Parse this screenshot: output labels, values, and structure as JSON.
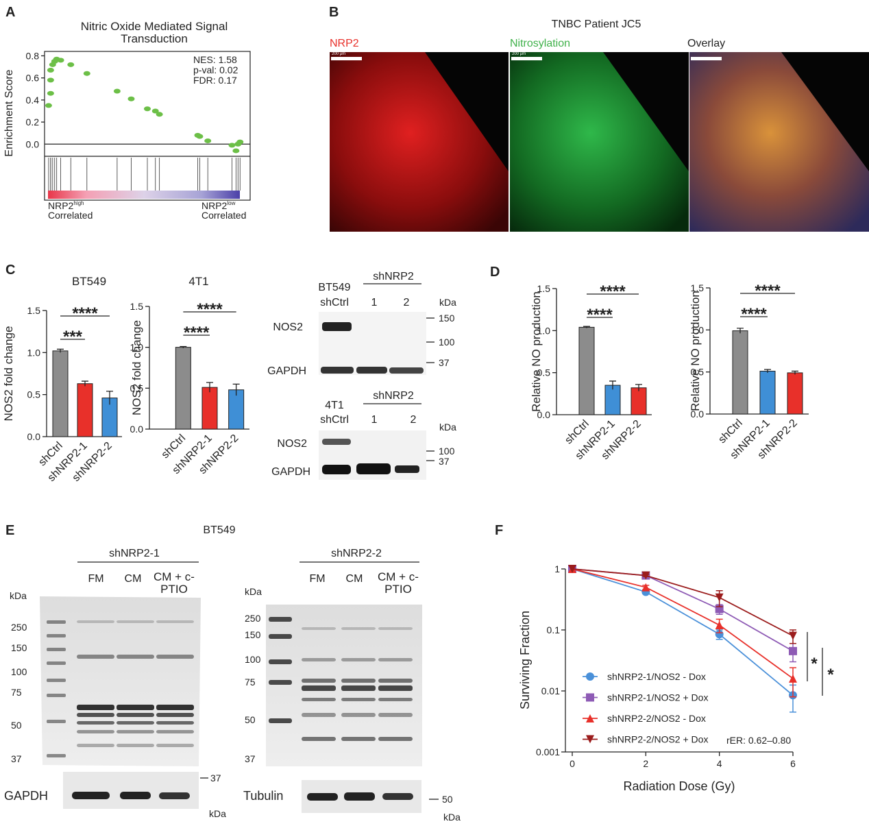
{
  "panel_labels": [
    "A",
    "B",
    "C",
    "D",
    "E",
    "F"
  ],
  "chart_data": [
    {
      "type": "scatter",
      "title": "Nitric Oxide Mediated Signal Transduction",
      "ylabel": "Enrichment Score",
      "color": "#6cbf47",
      "x": [
        1,
        2,
        2,
        2,
        3,
        4,
        5,
        7,
        12,
        20,
        35,
        42,
        50,
        54,
        56,
        75,
        76,
        80,
        92,
        94,
        95,
        96
      ],
      "values": [
        0.35,
        0.46,
        0.58,
        0.67,
        0.72,
        0.75,
        0.77,
        0.76,
        0.72,
        0.64,
        0.48,
        0.41,
        0.32,
        0.3,
        0.27,
        0.08,
        0.07,
        0.03,
        -0.01,
        -0.06,
        0,
        0.02
      ],
      "xlim": [
        0,
        100
      ],
      "ylim": [
        -0.11,
        0.84
      ],
      "yticks": [
        {
          "value": 0,
          "label": "0.0"
        },
        {
          "value": 0.2,
          "label": "0.2"
        },
        {
          "value": 0.4,
          "label": "0.4"
        },
        {
          "value": 0.6,
          "label": "0.6"
        },
        {
          "value": 0.8,
          "label": "0.8"
        }
      ],
      "annotations": [
        "NES: 1.58",
        "p-val: 0.02",
        "FDR: 0.17"
      ],
      "left_label": {
        "text": "NRP2",
        "sup": "high",
        "line2": "Correlated"
      },
      "right_label": {
        "text": "NRP2",
        "sup": "low",
        "line2": "Correlated"
      }
    },
    {
      "type": "bar",
      "title": "BT549",
      "ylabel": "NOS2 fold change",
      "categories": [
        "shCtrl",
        "shNRP2-1",
        "shNRP2-2"
      ],
      "values": [
        1.02,
        0.63,
        0.46
      ],
      "errors": [
        0.02,
        0.03,
        0.08
      ],
      "colors": [
        "#8c8c8c",
        "#e8302a",
        "#3f8fd6"
      ],
      "ylim": [
        0,
        1.5
      ],
      "yticks": [
        {
          "value": 0,
          "label": "0.0"
        },
        {
          "value": 0.5,
          "label": "0.5"
        },
        {
          "value": 1,
          "label": "1.0"
        },
        {
          "value": 1.5,
          "label": "1.5"
        }
      ],
      "significance": [
        "***",
        "****"
      ]
    },
    {
      "type": "bar",
      "title": "4T1",
      "ylabel": "NOS2 fold change",
      "categories": [
        "shCtrl",
        "shNRP2-1",
        "shNRP2-2"
      ],
      "values": [
        1.0,
        0.51,
        0.48
      ],
      "errors": [
        0.01,
        0.06,
        0.07
      ],
      "colors": [
        "#8c8c8c",
        "#e8302a",
        "#3f8fd6"
      ],
      "ylim": [
        0,
        1.5
      ],
      "yticks": [
        {
          "value": 0,
          "label": "0.0"
        },
        {
          "value": 0.5,
          "label": "0.5"
        },
        {
          "value": 1,
          "label": "1.0"
        },
        {
          "value": 1.5,
          "label": "1.5"
        }
      ],
      "significance": [
        "****",
        "****"
      ]
    },
    {
      "type": "bar",
      "ylabel": "Relative NO production",
      "categories": [
        "shCtrl",
        "shNRP2-1",
        "shNRP2-2"
      ],
      "values": [
        1.04,
        0.35,
        0.32
      ],
      "errors": [
        0.01,
        0.05,
        0.04
      ],
      "colors": [
        "#8c8c8c",
        "#3f8fd6",
        "#e8302a"
      ],
      "ylim": [
        0,
        1.5
      ],
      "yticks": [
        {
          "value": 0,
          "label": "0.0"
        },
        {
          "value": 0.5,
          "label": "0.5"
        },
        {
          "value": 1,
          "label": "1.0"
        },
        {
          "value": 1.5,
          "label": "1.5"
        }
      ],
      "significance": [
        "****",
        "****"
      ]
    },
    {
      "type": "bar",
      "ylabel": "Relative NO production",
      "categories": [
        "shCtrl",
        "shNRP2-1",
        "shNRP2-2"
      ],
      "values": [
        0.99,
        0.51,
        0.49
      ],
      "errors": [
        0.03,
        0.02,
        0.02
      ],
      "colors": [
        "#8c8c8c",
        "#3f8fd6",
        "#e8302a"
      ],
      "ylim": [
        0,
        1.5
      ],
      "yticks": [
        {
          "value": 0,
          "label": "0.0"
        },
        {
          "value": 0.5,
          "label": "0.5"
        },
        {
          "value": 1,
          "label": "1.0"
        },
        {
          "value": 1.5,
          "label": "1.5"
        }
      ],
      "significance": [
        "****",
        "****"
      ]
    },
    {
      "type": "line",
      "xlabel": "Radiation Dose (Gy)",
      "ylabel": "Surviving Fraction",
      "log_y": true,
      "x": [
        0,
        2,
        4,
        6
      ],
      "xlim": [
        0,
        6
      ],
      "xticks": [
        0,
        2,
        4,
        6
      ],
      "ylim": [
        0.001,
        1
      ],
      "yticks": [
        0.001,
        0.01,
        0.1,
        1
      ],
      "series": [
        {
          "name": "shNRP2-1/NOS2 - Dox",
          "color": "#4a90d9",
          "marker": "circle",
          "values": [
            1,
            0.42,
            0.085,
            0.0085
          ],
          "errors": [
            0,
            0.03,
            0.015,
            0.004
          ]
        },
        {
          "name": "shNRP2-1/NOS2 + Dox",
          "color": "#8e5bb5",
          "marker": "square",
          "values": [
            1,
            0.78,
            0.22,
            0.045
          ],
          "errors": [
            0,
            0.03,
            0.04,
            0.015
          ]
        },
        {
          "name": "shNRP2-2/NOS2 - Dox",
          "color": "#e8302a",
          "marker": "triangle",
          "values": [
            1,
            0.5,
            0.12,
            0.016
          ],
          "errors": [
            0,
            0.04,
            0.03,
            0.008
          ]
        },
        {
          "name": "shNRP2-2/NOS2 + Dox",
          "color": "#9b1c1c",
          "marker": "triangle-down",
          "values": [
            1,
            0.78,
            0.34,
            0.08
          ],
          "errors": [
            0,
            0.03,
            0.1,
            0.02
          ]
        }
      ],
      "annotations": [
        "rER: 0.62–0.80",
        "*",
        "*"
      ]
    }
  ],
  "panel_b": {
    "title": "TNBC Patient JC5",
    "channels": [
      "NRP2",
      "Nitrosylation",
      "Overlay"
    ],
    "scale_bar": "200 µm"
  },
  "panel_c_blots": [
    {
      "cell_line": "BT549",
      "control": "shCtrl",
      "group": "shNRP2",
      "lanes": [
        "1",
        "2"
      ],
      "unit": "kDa",
      "markers": [
        "150",
        "100",
        "37"
      ],
      "proteins": [
        "NOS2",
        "GAPDH"
      ]
    },
    {
      "cell_line": "4T1",
      "control": "shCtrl",
      "group": "shNRP2",
      "lanes": [
        "1",
        "2"
      ],
      "unit": "kDa",
      "markers": [
        "100",
        "37"
      ],
      "proteins": [
        "NOS2",
        "GAPDH"
      ]
    }
  ],
  "panel_e": {
    "title": "BT549",
    "blots": [
      {
        "group": "shNRP2-1",
        "lanes": [
          "FM",
          "CM",
          "CM + c-PTIO"
        ],
        "unit": "kDa",
        "markers": [
          "250",
          "150",
          "100",
          "75",
          "50",
          "37"
        ],
        "loading_control": "GAPDH",
        "loading_marker": "37",
        "loading_unit": "kDa"
      },
      {
        "group": "shNRP2-2",
        "lanes": [
          "FM",
          "CM",
          "CM + c-PTIO"
        ],
        "unit": "kDa",
        "markers": [
          "250",
          "150",
          "100",
          "75",
          "50",
          "37"
        ],
        "loading_control": "Tubulin",
        "loading_marker": "50",
        "loading_unit": "kDa"
      }
    ]
  }
}
